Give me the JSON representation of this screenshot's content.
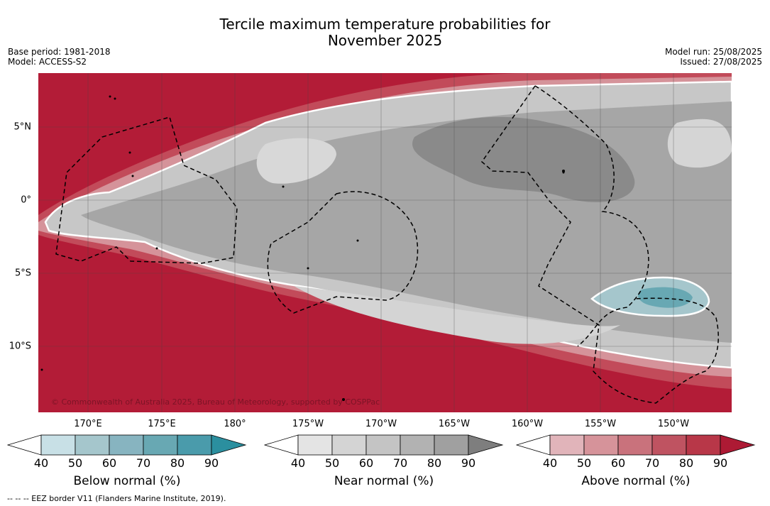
{
  "title_line1": "Tercile maximum temperature probabilities for",
  "title_line2": "November 2025",
  "base_period": "Base period: 1981-2018",
  "model": "Model: ACCESS-S2",
  "model_run": "Model run: 25/08/2025",
  "issued": "Issued: 27/08/2025",
  "copyright": "© Commonwealth of Australia 2025, Bureau of Meteorology, supported by COSPPac",
  "footnote": "-- -- -- EEZ border V11 (Flanders Marine Institute, 2019).",
  "lat_labels": [
    "5°N",
    "0°",
    "5°S",
    "10°S"
  ],
  "lon_labels": [
    "170°E",
    "175°E",
    "180°",
    "175°W",
    "170°W",
    "165°W",
    "160°W",
    "155°W",
    "150°W"
  ],
  "colorbars": [
    {
      "title": "Below normal (%)",
      "ticks": [
        "40",
        "50",
        "60",
        "70",
        "80",
        "90"
      ],
      "colors": [
        "#c8e0e6",
        "#a5c6cc",
        "#87b4c0",
        "#68a8b3",
        "#4a9bab",
        "#2b8f9f"
      ]
    },
    {
      "title": "Near normal (%)",
      "ticks": [
        "40",
        "50",
        "60",
        "70",
        "80",
        "90"
      ],
      "colors": [
        "#e4e4e4",
        "#d4d4d4",
        "#c4c4c4",
        "#b2b2b2",
        "#a0a0a0",
        "#7e7e7e"
      ]
    },
    {
      "title": "Above normal (%)",
      "ticks": [
        "40",
        "50",
        "60",
        "70",
        "80",
        "90"
      ],
      "colors": [
        "#e1b4ba",
        "#d6939a",
        "#c9727c",
        "#bf5361",
        "#b83748",
        "#ad1a34"
      ]
    }
  ],
  "colors": {
    "land": "#b31c37",
    "ocean_near": "#a2a2a2"
  }
}
